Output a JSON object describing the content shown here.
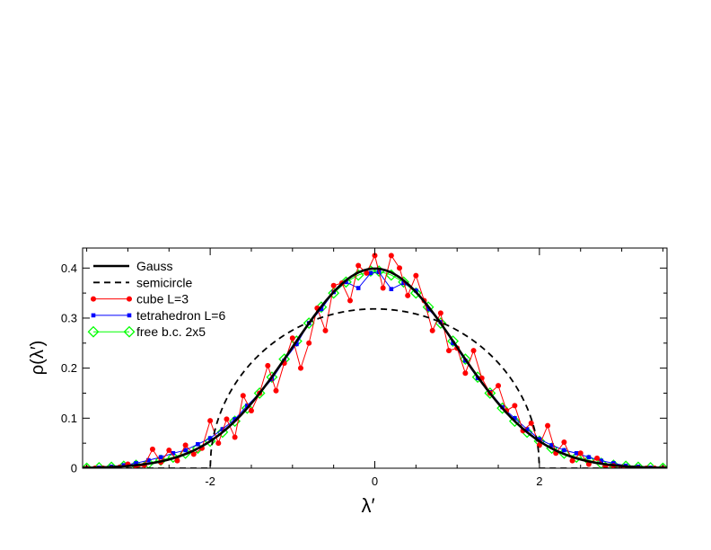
{
  "chart_data": {
    "type": "line",
    "title": "",
    "xlabel": "λ′",
    "ylabel": "ρ(λ′)",
    "xlim": [
      -3.55,
      3.55
    ],
    "ylim": [
      0,
      0.44
    ],
    "xticks": [
      -2,
      0,
      2
    ],
    "xtick_labels": [
      "-2",
      "0",
      "2"
    ],
    "yticks": [
      0,
      0.1,
      0.2,
      0.3,
      0.4
    ],
    "ytick_labels": [
      "0",
      "0.1",
      "0.2",
      "0.3",
      "0.4"
    ],
    "grid": false,
    "legend_placement": "top-left",
    "series": [
      {
        "name": "Gauss",
        "style": "solid-thick",
        "color": "#000000",
        "function": "gauss",
        "sigma": 1.0
      },
      {
        "name": "semicircle",
        "style": "dashed",
        "color": "#000000",
        "function": "semicircle",
        "radius": 2.0
      },
      {
        "name": "cube L=3",
        "style": "line-circle",
        "color": "#ff0000",
        "x": [
          -3.5,
          -3.4,
          -3.3,
          -3.2,
          -3.1,
          -3.0,
          -2.9,
          -2.8,
          -2.7,
          -2.6,
          -2.5,
          -2.4,
          -2.3,
          -2.2,
          -2.1,
          -2.0,
          -1.9,
          -1.8,
          -1.7,
          -1.6,
          -1.5,
          -1.4,
          -1.3,
          -1.2,
          -1.1,
          -1.0,
          -0.9,
          -0.8,
          -0.7,
          -0.6,
          -0.5,
          -0.4,
          -0.3,
          -0.2,
          -0.1,
          0.0,
          0.1,
          0.2,
          0.3,
          0.4,
          0.5,
          0.6,
          0.7,
          0.8,
          0.9,
          1.0,
          1.1,
          1.2,
          1.3,
          1.4,
          1.5,
          1.6,
          1.7,
          1.8,
          1.9,
          2.0,
          2.1,
          2.2,
          2.3,
          2.4,
          2.5,
          2.6,
          2.7,
          2.8,
          2.9,
          3.0,
          3.1,
          3.2,
          3.3,
          3.4,
          3.5
        ],
        "values": [
          0.0,
          0.0,
          0.0,
          0.0,
          0.002,
          0.008,
          0.002,
          0.006,
          0.038,
          0.012,
          0.036,
          0.015,
          0.046,
          0.028,
          0.04,
          0.095,
          0.05,
          0.098,
          0.062,
          0.145,
          0.115,
          0.15,
          0.205,
          0.155,
          0.21,
          0.26,
          0.2,
          0.25,
          0.32,
          0.275,
          0.365,
          0.37,
          0.335,
          0.405,
          0.39,
          0.425,
          0.36,
          0.425,
          0.4,
          0.345,
          0.385,
          0.335,
          0.275,
          0.31,
          0.235,
          0.24,
          0.19,
          0.235,
          0.18,
          0.15,
          0.165,
          0.115,
          0.125,
          0.075,
          0.09,
          0.046,
          0.085,
          0.03,
          0.052,
          0.015,
          0.03,
          0.008,
          0.02,
          0.004,
          0.005,
          0.002,
          0.0,
          0.0,
          0.0,
          0.0,
          0.0
        ]
      },
      {
        "name": "tetrahedron L=6",
        "style": "line-square",
        "color": "#0000ff",
        "x": [
          -3.5,
          -3.35,
          -3.2,
          -3.05,
          -2.9,
          -2.75,
          -2.6,
          -2.45,
          -2.3,
          -2.15,
          -2.0,
          -1.85,
          -1.7,
          -1.55,
          -1.4,
          -1.25,
          -1.1,
          -0.95,
          -0.8,
          -0.65,
          -0.5,
          -0.35,
          -0.2,
          -0.05,
          0.05,
          0.2,
          0.35,
          0.5,
          0.65,
          0.8,
          0.95,
          1.1,
          1.25,
          1.4,
          1.55,
          1.7,
          1.85,
          2.0,
          2.15,
          2.3,
          2.45,
          2.6,
          2.75,
          2.9,
          3.05,
          3.2,
          3.35,
          3.5
        ],
        "values": [
          0.0,
          0.001,
          0.003,
          0.006,
          0.01,
          0.016,
          0.022,
          0.03,
          0.036,
          0.048,
          0.06,
          0.078,
          0.098,
          0.125,
          0.15,
          0.178,
          0.215,
          0.248,
          0.29,
          0.318,
          0.352,
          0.372,
          0.36,
          0.39,
          0.392,
          0.358,
          0.37,
          0.355,
          0.318,
          0.292,
          0.25,
          0.215,
          0.18,
          0.152,
          0.122,
          0.1,
          0.078,
          0.058,
          0.046,
          0.036,
          0.03,
          0.022,
          0.015,
          0.01,
          0.005,
          0.003,
          0.001,
          0.0
        ]
      },
      {
        "name": "free b.c. 2x5",
        "style": "line-diamond",
        "color": "#00ff00",
        "x": [
          -3.5,
          -3.35,
          -3.2,
          -3.05,
          -2.9,
          -2.75,
          -2.6,
          -2.45,
          -2.3,
          -2.15,
          -2.0,
          -1.85,
          -1.7,
          -1.55,
          -1.4,
          -1.25,
          -1.1,
          -0.95,
          -0.8,
          -0.65,
          -0.5,
          -0.35,
          -0.2,
          -0.05,
          0.05,
          0.2,
          0.35,
          0.5,
          0.65,
          0.8,
          0.95,
          1.1,
          1.25,
          1.4,
          1.55,
          1.7,
          1.85,
          2.0,
          2.15,
          2.3,
          2.45,
          2.6,
          2.75,
          2.9,
          3.05,
          3.2,
          3.35,
          3.5
        ],
        "values": [
          0.0,
          0.001,
          0.002,
          0.004,
          0.006,
          0.01,
          0.016,
          0.022,
          0.03,
          0.04,
          0.054,
          0.072,
          0.094,
          0.12,
          0.15,
          0.182,
          0.218,
          0.254,
          0.29,
          0.322,
          0.35,
          0.372,
          0.386,
          0.394,
          0.394,
          0.386,
          0.372,
          0.35,
          0.322,
          0.29,
          0.254,
          0.218,
          0.182,
          0.15,
          0.12,
          0.094,
          0.072,
          0.054,
          0.04,
          0.03,
          0.022,
          0.016,
          0.01,
          0.006,
          0.004,
          0.002,
          0.001,
          0.0
        ]
      }
    ]
  }
}
